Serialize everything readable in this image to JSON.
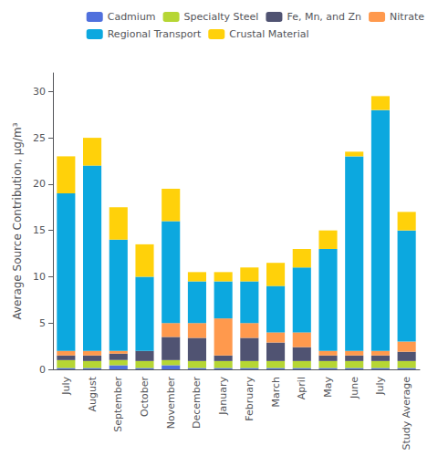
{
  "chart_data": {
    "type": "bar",
    "stacked": true,
    "legend": "upper right",
    "grid": false,
    "ylabel": "Average Source Contribution, μg/m³",
    "categories": [
      "July",
      "August",
      "September",
      "October",
      "November",
      "December",
      "January",
      "February",
      "March",
      "April",
      "May",
      "June",
      "July",
      "Study Average"
    ],
    "series": [
      {
        "name": "Cadmium",
        "values": [
          0.15,
          0.15,
          0.45,
          0.15,
          0.45,
          0.15,
          0.15,
          0.15,
          0.15,
          0.15,
          0.15,
          0.15,
          0.15,
          0.15
        ]
      },
      {
        "name": "Specialty Steel",
        "values": [
          0.85,
          0.75,
          0.55,
          0.75,
          0.55,
          0.75,
          0.75,
          0.75,
          0.75,
          0.75,
          0.75,
          0.75,
          0.75,
          0.75
        ]
      },
      {
        "name": "Fe, Mn, and Zn",
        "values": [
          0.5,
          0.6,
          0.7,
          1.1,
          2.5,
          2.5,
          0.6,
          2.5,
          2.0,
          1.5,
          0.6,
          0.6,
          0.6,
          1.0
        ]
      },
      {
        "name": "Nitrate",
        "values": [
          0.5,
          0.5,
          0.3,
          0.0,
          1.5,
          1.6,
          4.0,
          1.6,
          1.1,
          1.6,
          0.5,
          0.5,
          0.5,
          1.1
        ]
      },
      {
        "name": "Regional Transport",
        "values": [
          17.0,
          20.0,
          12.0,
          8.0,
          11.0,
          4.5,
          4.0,
          4.5,
          5.0,
          7.0,
          11.0,
          21.0,
          26.0,
          12.0
        ]
      },
      {
        "name": "Crustal Material",
        "values": [
          4.0,
          3.0,
          3.5,
          3.5,
          3.5,
          1.0,
          1.0,
          1.5,
          2.5,
          2.0,
          2.0,
          0.5,
          1.5,
          2.0
        ]
      }
    ],
    "ylim": [
      0,
      32
    ],
    "yticks": [
      0,
      5,
      10,
      15,
      20,
      25,
      30
    ]
  }
}
